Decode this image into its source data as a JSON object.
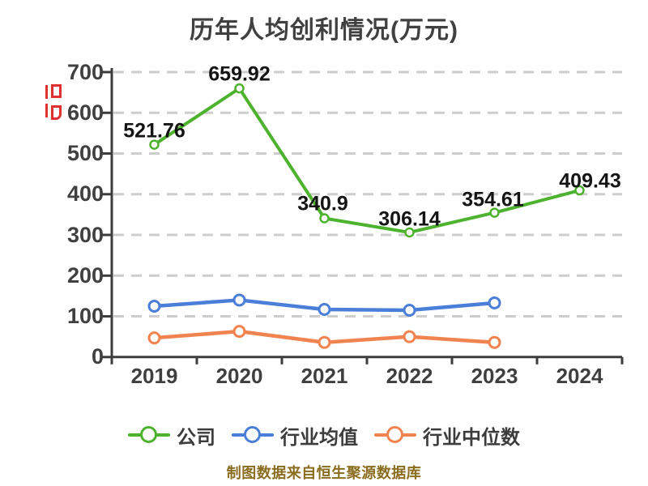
{
  "title": "历年人均创利情况(万元)",
  "footer": "制图数据来自恒生聚源数据库",
  "colors": {
    "title_text": "#404040",
    "axis": "#3c3c3c",
    "gridline": "#cdcdcd",
    "data_label": "#141414",
    "footer_text": "#8a6d1f",
    "watermark_red": "#e03030",
    "background": "#ffffff"
  },
  "chart_data": {
    "type": "line",
    "title": "历年人均创利情况(万元)",
    "xlabel": "",
    "ylabel": "",
    "categories": [
      "2019",
      "2020",
      "2021",
      "2022",
      "2023",
      "2024"
    ],
    "series": [
      {
        "name": "公司",
        "color": "#4db32e",
        "values": [
          521.76,
          659.92,
          340.9,
          306.14,
          354.61,
          409.43
        ],
        "labels": [
          "521.76",
          "659.92",
          "340.9",
          "306.14",
          "354.61",
          "409.43"
        ]
      },
      {
        "name": "行业均值",
        "color": "#4a7ed9",
        "values": [
          125,
          140,
          117,
          115,
          133,
          null
        ],
        "labels": []
      },
      {
        "name": "行业中位数",
        "color": "#f0834f",
        "values": [
          47,
          63,
          36,
          50,
          36,
          null
        ],
        "labels": []
      }
    ],
    "ylim": [
      0,
      700
    ],
    "yticks": [
      0,
      100,
      200,
      300,
      400,
      500,
      600,
      700
    ],
    "grid": "horizontal-dashed",
    "legend_position": "bottom"
  }
}
